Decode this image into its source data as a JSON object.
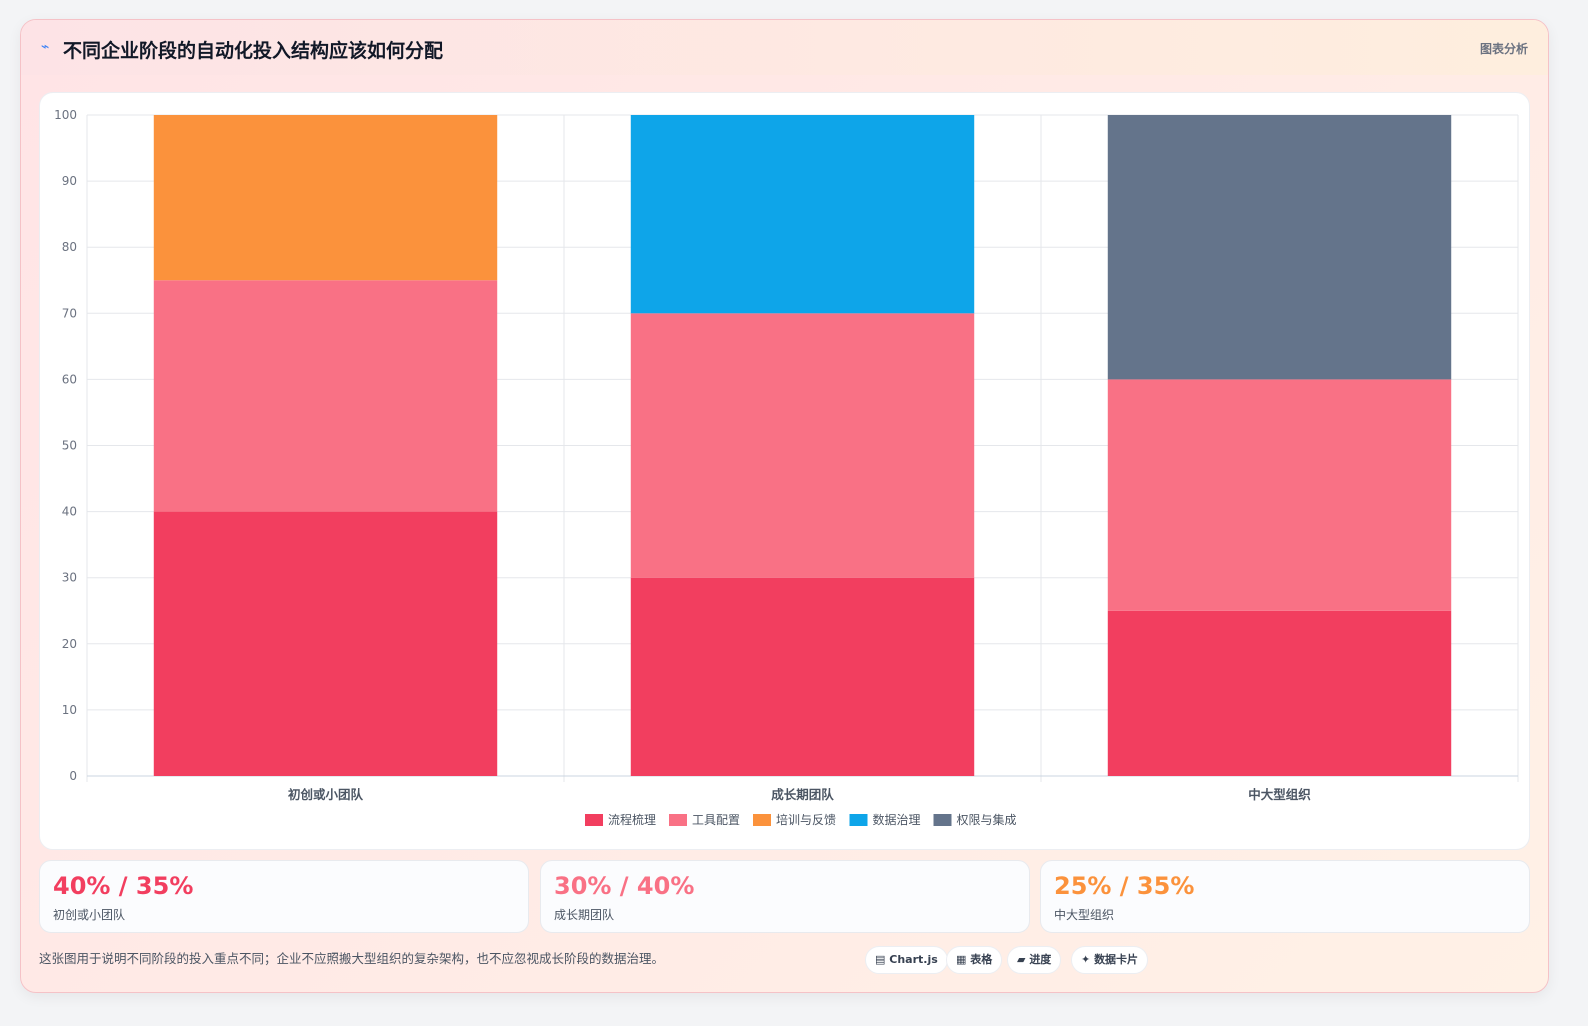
{
  "header": {
    "title": "不同企业阶段的自动化投入结构应该如何分配",
    "tag": "图表分析"
  },
  "colors": {
    "accent_red": "#f23e5f",
    "accent_pink": "#f97185",
    "accent_orange": "#fb923c",
    "accent_blue": "#0ea5e9",
    "accent_slate": "#64748b"
  },
  "chart_data": {
    "type": "bar",
    "stacked": true,
    "categories": [
      "初创或小团队",
      "成长期团队",
      "中大型组织"
    ],
    "series": [
      {
        "name": "流程梳理",
        "color": "#f23e5f",
        "values": [
          40,
          30,
          25
        ]
      },
      {
        "name": "工具配置",
        "color": "#f97185",
        "values": [
          35,
          40,
          35
        ]
      },
      {
        "name": "培训与反馈",
        "color": "#fb923c",
        "values": [
          25,
          0,
          0
        ]
      },
      {
        "name": "数据治理",
        "color": "#0ea5e9",
        "values": [
          0,
          30,
          0
        ]
      },
      {
        "name": "权限与集成",
        "color": "#64748b",
        "values": [
          0,
          0,
          40
        ]
      }
    ],
    "ylim": [
      0,
      100
    ],
    "yticks": [
      0,
      10,
      20,
      30,
      40,
      50,
      60,
      70,
      80,
      90,
      100
    ],
    "grid": true,
    "legend": "bottom"
  },
  "stats": [
    {
      "value": "40% / 35%",
      "label": "初创或小团队",
      "color": "#f23e5f"
    },
    {
      "value": "30% / 40%",
      "label": "成长期团队",
      "color": "#f97185"
    },
    {
      "value": "25% / 35%",
      "label": "中大型组织",
      "color": "#fb923c"
    }
  ],
  "footnote": "这张图用于说明不同阶段的投入重点不同；企业不应照搬大型组织的复杂架构，也不应忽视成长阶段的数据治理。",
  "pills": [
    {
      "icon": "▤",
      "label": "Chart.js"
    },
    {
      "icon": "▦",
      "label": "表格"
    },
    {
      "icon": "▰",
      "label": "进度"
    },
    {
      "icon": "✦",
      "label": "数据卡片"
    }
  ]
}
